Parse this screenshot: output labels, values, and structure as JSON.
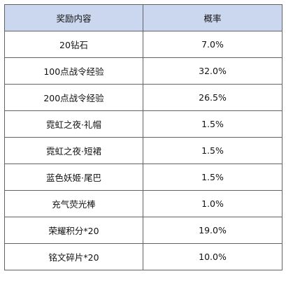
{
  "table": {
    "header_color": "#cad7ee",
    "border_color": "#5f6368",
    "headers": {
      "item": "奖励内容",
      "rate": "概率"
    },
    "rows": [
      {
        "item": "20钻石",
        "rate": "7.0%"
      },
      {
        "item": "100点战令经验",
        "rate": "32.0%"
      },
      {
        "item": "200点战令经验",
        "rate": "26.5%"
      },
      {
        "item": "霓虹之夜·礼帽",
        "rate": "1.5%"
      },
      {
        "item": "霓虹之夜·短裙",
        "rate": "1.5%"
      },
      {
        "item": "蓝色妖姬·尾巴",
        "rate": "1.5%"
      },
      {
        "item": "充气荧光棒",
        "rate": "1.0%"
      },
      {
        "item": "荣耀积分*20",
        "rate": "19.0%"
      },
      {
        "item": "铭文碎片*20",
        "rate": "10.0%"
      }
    ]
  }
}
